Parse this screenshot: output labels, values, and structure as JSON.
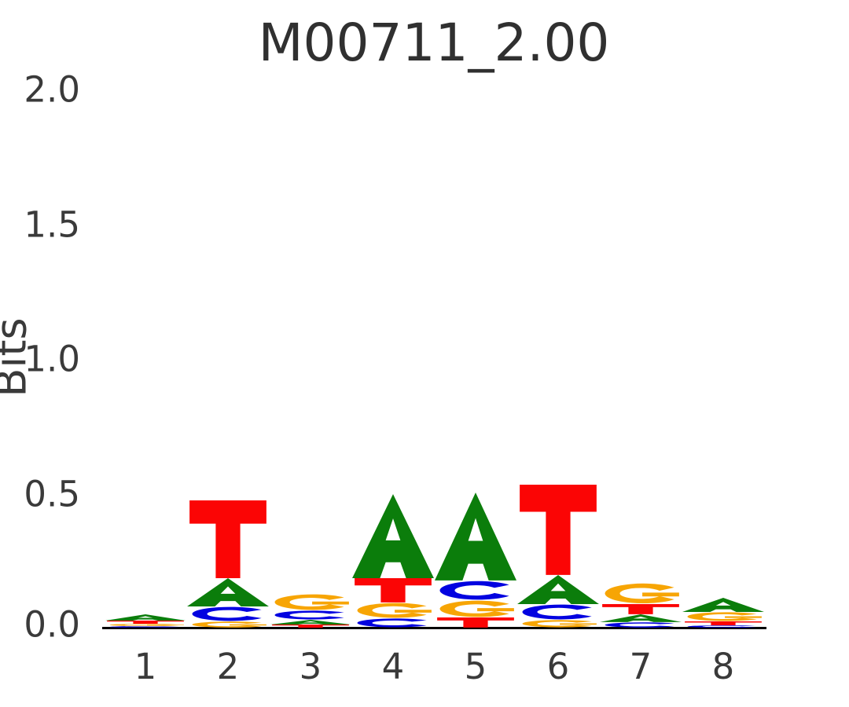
{
  "title": "M00711_2.00",
  "axes": {
    "ylabel": "Bits",
    "yticks": [
      "0.0",
      "0.5",
      "1.0",
      "1.5",
      "2.0"
    ],
    "xticks": [
      "1",
      "2",
      "3",
      "4",
      "5",
      "6",
      "7",
      "8"
    ]
  },
  "colors": {
    "A": "#0b7d0b",
    "C": "#0202e0",
    "G": "#f7a504",
    "T": "#fb0505"
  },
  "chart_data": {
    "type": "bar",
    "variant": "sequence-logo-stacked",
    "title": "M00711_2.00",
    "xlabel": "",
    "ylabel": "Bits",
    "ylim": [
      0,
      2.0
    ],
    "ytick_values": [
      0.0,
      0.5,
      1.0,
      1.5,
      2.0
    ],
    "positions": [
      1,
      2,
      3,
      4,
      5,
      6,
      7,
      8
    ],
    "stack_order": "top-to-bottom",
    "stacks": [
      [
        {
          "base": "A",
          "bits": 0.024
        },
        {
          "base": "T",
          "bits": 0.012
        },
        {
          "base": "G",
          "bits": 0.009
        },
        {
          "base": "C",
          "bits": 0.006
        }
      ],
      [
        {
          "base": "T",
          "bits": 0.291
        },
        {
          "base": "A",
          "bits": 0.106
        },
        {
          "base": "C",
          "bits": 0.056
        },
        {
          "base": "G",
          "bits": 0.024
        }
      ],
      [
        {
          "base": "G",
          "bits": 0.062
        },
        {
          "base": "C",
          "bits": 0.035
        },
        {
          "base": "A",
          "bits": 0.018
        },
        {
          "base": "T",
          "bits": 0.012
        }
      ],
      [
        {
          "base": "A",
          "bits": 0.315
        },
        {
          "base": "T",
          "bits": 0.091
        },
        {
          "base": "G",
          "bits": 0.059
        },
        {
          "base": "C",
          "bits": 0.035
        }
      ],
      [
        {
          "base": "A",
          "bits": 0.329
        },
        {
          "base": "C",
          "bits": 0.074
        },
        {
          "base": "G",
          "bits": 0.065
        },
        {
          "base": "T",
          "bits": 0.038
        }
      ],
      [
        {
          "base": "T",
          "bits": 0.338
        },
        {
          "base": "A",
          "bits": 0.109
        },
        {
          "base": "C",
          "bits": 0.059
        },
        {
          "base": "G",
          "bits": 0.029
        }
      ],
      [
        {
          "base": "G",
          "bits": 0.079
        },
        {
          "base": "T",
          "bits": 0.038
        },
        {
          "base": "A",
          "bits": 0.029
        },
        {
          "base": "C",
          "bits": 0.021
        }
      ],
      [
        {
          "base": "A",
          "bits": 0.053
        },
        {
          "base": "G",
          "bits": 0.035
        },
        {
          "base": "T",
          "bits": 0.015
        },
        {
          "base": "C",
          "bits": 0.009
        }
      ]
    ]
  }
}
